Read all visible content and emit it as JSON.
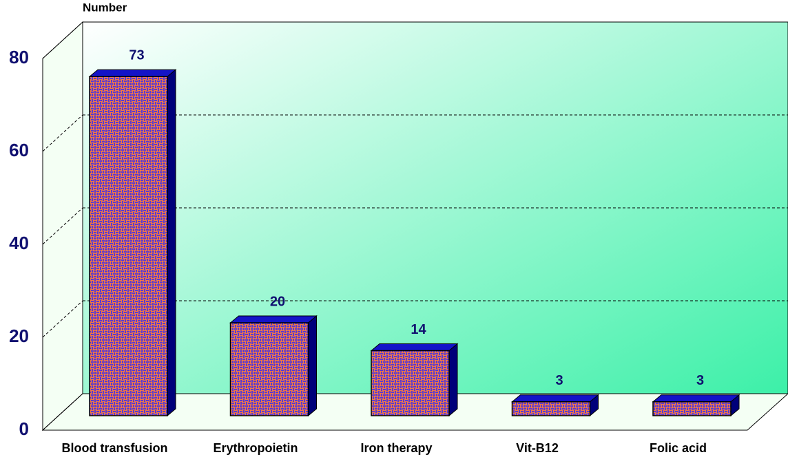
{
  "chart_data": {
    "type": "bar3d",
    "y_label": "Number",
    "categories": [
      "Blood transfusion",
      "Erythropoietin",
      "Iron therapy",
      "Vit-B12",
      "Folic acid"
    ],
    "values": [
      73,
      20,
      14,
      3,
      3
    ],
    "color": "#f07848",
    "top_color": "#1414c8",
    "side_color": "#00007a",
    "label_color": "#101070",
    "ylim": [
      0,
      80
    ],
    "yticks": [
      0,
      20,
      40,
      60,
      80
    ],
    "grid": true
  }
}
